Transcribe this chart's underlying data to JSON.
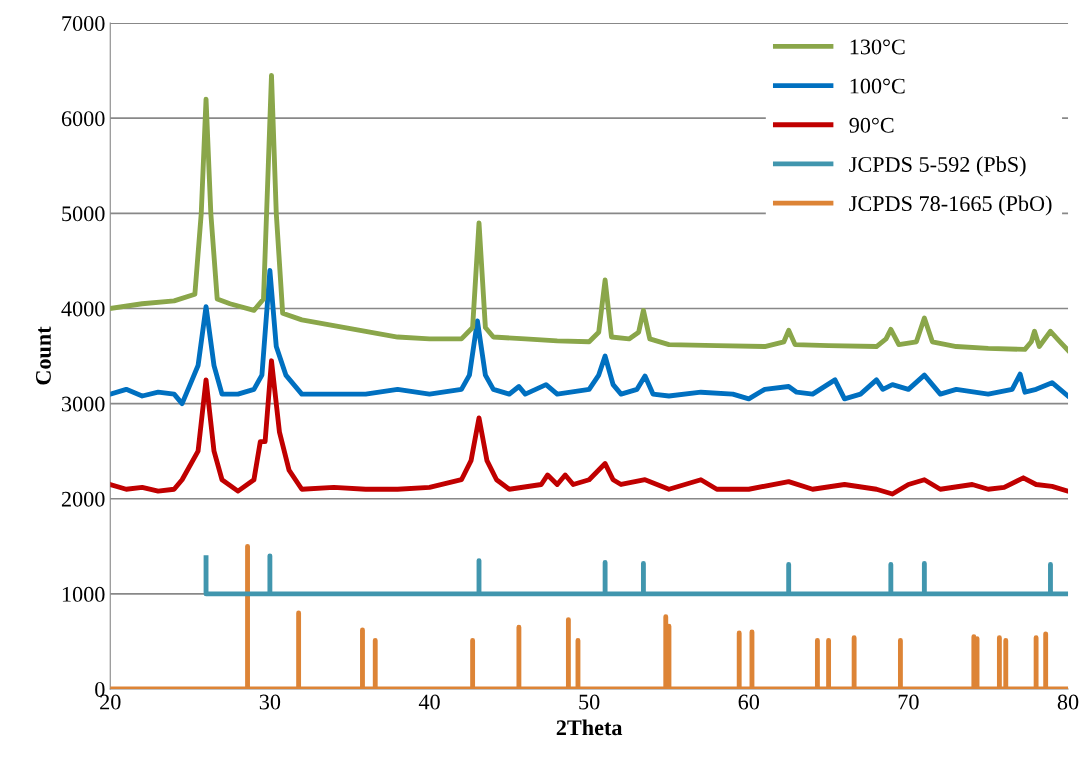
{
  "chart_data": {
    "type": "line",
    "xlabel": "2Theta",
    "ylabel": "Count",
    "xlim": [
      20,
      80
    ],
    "xticks": [
      20,
      30,
      40,
      50,
      60,
      70,
      80
    ],
    "ylim": [
      0,
      7000
    ],
    "yticks": [
      0,
      1000,
      2000,
      3000,
      4000,
      5000,
      6000,
      7000
    ],
    "grid": "y",
    "legend": "top right",
    "line_style": "solid",
    "marker": "none",
    "series": [
      {
        "name": "130°C",
        "color": "#8aa64a",
        "x": [
          20,
          22,
          24,
          25.3,
          25.7,
          26,
          26.3,
          26.7,
          27.5,
          29,
          29.6,
          29.9,
          30.1,
          30.4,
          30.8,
          32,
          34,
          36,
          38,
          40,
          42,
          42.7,
          43.1,
          43.5,
          44,
          46,
          48,
          50,
          50.6,
          51,
          51.4,
          52.5,
          53.1,
          53.4,
          53.8,
          55,
          58,
          61,
          62.2,
          62.5,
          62.9,
          65,
          68,
          68.6,
          68.9,
          69.4,
          70.5,
          71,
          71.5,
          73,
          75,
          77.3,
          77.7,
          77.9,
          78.2,
          78.9,
          79.5,
          80
        ],
        "values": [
          4000,
          4050,
          4080,
          4150,
          5000,
          6200,
          5000,
          4100,
          4050,
          3980,
          4100,
          5500,
          6450,
          5000,
          3950,
          3880,
          3820,
          3760,
          3700,
          3680,
          3680,
          3800,
          4900,
          3800,
          3700,
          3680,
          3660,
          3650,
          3750,
          4300,
          3700,
          3680,
          3750,
          3980,
          3680,
          3620,
          3610,
          3600,
          3650,
          3770,
          3620,
          3610,
          3600,
          3680,
          3780,
          3620,
          3650,
          3900,
          3650,
          3600,
          3580,
          3570,
          3650,
          3760,
          3600,
          3760,
          3650,
          3560
        ]
      },
      {
        "name": "100°C",
        "color": "#0070c0",
        "x": [
          20,
          21,
          22,
          23,
          24,
          24.5,
          25,
          25.5,
          26,
          26.5,
          27,
          28,
          29,
          29.5,
          30,
          30.4,
          31,
          32,
          34,
          36,
          38,
          40,
          42,
          42.5,
          43,
          43.5,
          44,
          45,
          45.6,
          46,
          47.3,
          48,
          50,
          50.6,
          51,
          51.5,
          52,
          53,
          53.5,
          54,
          55,
          57,
          59,
          60,
          61,
          62.5,
          63,
          64,
          65.4,
          66,
          67,
          68,
          68.4,
          69,
          70,
          71,
          71.5,
          72,
          73,
          75,
          76.5,
          77,
          77.3,
          78,
          79,
          80
        ],
        "values": [
          3100,
          3150,
          3080,
          3120,
          3100,
          3000,
          3200,
          3400,
          4020,
          3400,
          3100,
          3100,
          3150,
          3300,
          4400,
          3600,
          3300,
          3100,
          3100,
          3100,
          3150,
          3100,
          3150,
          3300,
          3870,
          3300,
          3150,
          3100,
          3180,
          3100,
          3200,
          3100,
          3150,
          3300,
          3500,
          3200,
          3100,
          3150,
          3290,
          3100,
          3080,
          3120,
          3100,
          3050,
          3150,
          3180,
          3120,
          3100,
          3250,
          3050,
          3100,
          3250,
          3150,
          3200,
          3150,
          3300,
          3200,
          3100,
          3150,
          3100,
          3150,
          3310,
          3120,
          3150,
          3220,
          3080
        ]
      },
      {
        "name": "90°C",
        "color": "#c00000",
        "x": [
          20,
          21,
          22,
          23,
          24,
          24.5,
          25.5,
          26,
          26.5,
          27,
          28,
          29,
          29.4,
          29.7,
          30.1,
          30.6,
          31.2,
          32,
          34,
          36,
          38,
          40,
          42,
          42.6,
          43.1,
          43.6,
          44.2,
          45,
          47,
          47.4,
          48,
          48.5,
          49,
          50,
          51,
          51.5,
          52,
          53.5,
          55,
          57,
          58,
          60,
          62.5,
          64,
          66,
          68,
          69,
          70,
          71,
          72,
          74,
          75,
          76,
          77.2,
          78,
          79,
          80
        ],
        "values": [
          2150,
          2100,
          2120,
          2080,
          2100,
          2200,
          2500,
          3250,
          2500,
          2200,
          2080,
          2200,
          2600,
          2600,
          3450,
          2700,
          2300,
          2100,
          2120,
          2100,
          2100,
          2120,
          2200,
          2400,
          2850,
          2400,
          2200,
          2100,
          2150,
          2250,
          2150,
          2250,
          2150,
          2200,
          2370,
          2200,
          2150,
          2200,
          2100,
          2200,
          2100,
          2100,
          2180,
          2100,
          2150,
          2100,
          2050,
          2150,
          2200,
          2100,
          2150,
          2100,
          2120,
          2220,
          2150,
          2130,
          2080
        ]
      },
      {
        "name": "JCPDS 5-592 (PbS)",
        "color": "#4196ae",
        "x": [
          26,
          26,
          30,
          30,
          30,
          43.1,
          43.1,
          43.1,
          51,
          51,
          51,
          53.4,
          53.4,
          53.4,
          62.5,
          62.5,
          62.5,
          68.9,
          68.9,
          68.9,
          71,
          71,
          71,
          78.9,
          78.9,
          78.9,
          80
        ],
        "values": [
          1380,
          1000,
          1000,
          1400,
          1000,
          1000,
          1350,
          1000,
          1000,
          1330,
          1000,
          1000,
          1320,
          1000,
          1000,
          1310,
          1000,
          1000,
          1310,
          1000,
          1000,
          1320,
          1000,
          1000,
          1310,
          1000,
          1000
        ]
      },
      {
        "name": "JCPDS 78-1665 (PbO)",
        "color": "#dd8436",
        "x": [
          20,
          28.6,
          28.6,
          28.6,
          31.8,
          31.8,
          31.8,
          35.8,
          35.8,
          35.8,
          36.6,
          36.6,
          36.6,
          42.7,
          42.7,
          42.7,
          45.6,
          45.6,
          45.6,
          48.7,
          48.7,
          48.7,
          49.3,
          49.3,
          49.3,
          54.8,
          54.8,
          54.8,
          55.0,
          55.0,
          55.0,
          59.4,
          59.4,
          59.4,
          60.2,
          60.2,
          60.2,
          64.3,
          64.3,
          64.3,
          65.0,
          65.0,
          65.0,
          66.6,
          66.6,
          66.6,
          69.5,
          69.5,
          69.5,
          74.1,
          74.1,
          74.1,
          74.3,
          74.3,
          74.3,
          75.7,
          75.7,
          75.7,
          76.1,
          76.1,
          76.1,
          78.0,
          78.0,
          78.0,
          78.6,
          78.6,
          78.6,
          80
        ],
        "values": [
          0,
          0,
          1500,
          0,
          0,
          800,
          0,
          0,
          620,
          0,
          0,
          510,
          0,
          0,
          510,
          0,
          0,
          650,
          0,
          0,
          730,
          0,
          0,
          510,
          0,
          0,
          760,
          0,
          0,
          660,
          0,
          0,
          590,
          0,
          0,
          600,
          0,
          0,
          510,
          0,
          0,
          510,
          0,
          0,
          540,
          0,
          0,
          510,
          0,
          0,
          550,
          0,
          0,
          530,
          0,
          0,
          540,
          0,
          0,
          510,
          0,
          0,
          540,
          0,
          0,
          580,
          0,
          0
        ]
      }
    ]
  }
}
